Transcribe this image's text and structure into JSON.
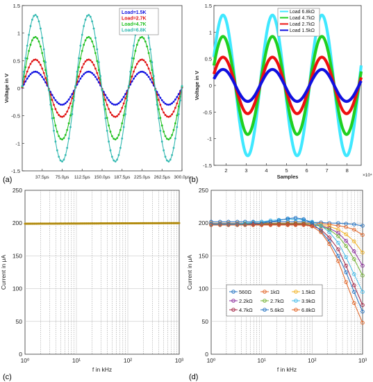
{
  "colors": {
    "load_1_5K": "#1010e0",
    "load_2_7K": "#e01010",
    "load_4_7K": "#20c020",
    "load_6_8K": "#30b8b0",
    "b_cyan": "#40e8ff",
    "c_line": "#c8a020",
    "d_560": "#1f6fc0",
    "d_1k": "#e06020",
    "d_1_5k": "#f0b020",
    "d_2_2k": "#8a2a9a",
    "d_2_7k": "#70b030",
    "d_3_9k": "#40b8e8",
    "d_4_7k": "#a02040",
    "d_5_6k": "#1f6fc0",
    "d_6_8k": "#e06020"
  },
  "panels": {
    "a": {
      "label": "(a)"
    },
    "b": {
      "label": "(b)"
    },
    "c": {
      "label": "(c)"
    },
    "d": {
      "label": "(d)"
    }
  },
  "chart_data": [
    {
      "panel": "a",
      "type": "line",
      "ylabel": "Voltage in V",
      "xlabel": "",
      "xlim": [
        0,
        300
      ],
      "ylim": [
        -1.5,
        1.5
      ],
      "x_ticks": [
        37.5,
        75,
        112.5,
        150,
        187.5,
        225,
        262.5,
        300
      ],
      "x_tick_labels": [
        "37.5μs",
        "75.0μs",
        "112.5μs",
        "150.0μs",
        "187.5μs",
        "225.0μs",
        "262.5μs",
        "300.0μs"
      ],
      "y_ticks": [
        -1.5,
        -1,
        -0.5,
        0,
        0.5,
        1,
        1.5
      ],
      "y_tick_labels": [
        "-1.5",
        "-1",
        "-0.5",
        "0",
        "0.5",
        "1",
        "1.5"
      ],
      "period": 100,
      "phase_offset": 0.03,
      "legend_position": "top-right",
      "series": [
        {
          "name": "Load=1.5K",
          "amplitude": 0.3,
          "color": "#1010e0"
        },
        {
          "name": "Load=2.7K",
          "amplitude": 0.52,
          "color": "#e01010"
        },
        {
          "name": "Load=4.7K",
          "amplitude": 0.93,
          "color": "#20c020"
        },
        {
          "name": "Load=6.8K",
          "amplitude": 1.33,
          "color": "#30b8b0"
        }
      ]
    },
    {
      "panel": "b",
      "type": "line",
      "ylabel": "Voltage in V",
      "xlabel": "Samples",
      "x_exponent": "×10⁴",
      "xlim": [
        1.4,
        8.7
      ],
      "ylim": [
        -1.5,
        1.5
      ],
      "x_ticks": [
        2,
        3,
        4,
        5,
        6,
        7,
        8
      ],
      "x_tick_labels": [
        "2",
        "3",
        "4",
        "5",
        "6",
        "7",
        "8"
      ],
      "y_ticks": [
        -1.5,
        -1,
        -0.5,
        0,
        0.5,
        1,
        1.5
      ],
      "y_tick_labels": [
        "-1.5",
        "-1",
        "-0.5",
        "0",
        "0.5",
        "1",
        "1.5"
      ],
      "period": 2.45,
      "peak_x": 1.85,
      "legend_position": "top-right",
      "series": [
        {
          "name": "Load 6.8kΩ",
          "amplitude": 1.32,
          "color": "#40e8ff"
        },
        {
          "name": "Load 4.7kΩ",
          "amplitude": 0.92,
          "color": "#20d020"
        },
        {
          "name": "Load 2.7kΩ",
          "amplitude": 0.53,
          "color": "#ee1010"
        },
        {
          "name": "Load 1.5kΩ",
          "amplitude": 0.3,
          "color": "#1010e0"
        }
      ]
    },
    {
      "panel": "c",
      "type": "line",
      "xscale": "log",
      "ylabel": "Current in μA",
      "xlabel": "f in kHz",
      "xlim": [
        1,
        1000
      ],
      "ylim": [
        0,
        250
      ],
      "x_tick_labels": [
        "10⁰",
        "10¹",
        "10²",
        "10³"
      ],
      "y_ticks": [
        0,
        50,
        100,
        150,
        200,
        250
      ],
      "y_tick_labels": [
        "0",
        "50",
        "100",
        "150",
        "200",
        "250"
      ],
      "grid": true,
      "series": [
        {
          "x": [
            1,
            1000
          ],
          "y": [
            199,
            200
          ],
          "color": "#c8a020"
        }
      ]
    },
    {
      "panel": "d",
      "type": "line",
      "xscale": "log",
      "ylabel": "Current in μA",
      "xlabel": "f in kHz",
      "xlim": [
        1,
        1000
      ],
      "ylim": [
        0,
        250
      ],
      "x_tick_labels": [
        "10⁰",
        "10¹",
        "10²",
        "10³"
      ],
      "y_ticks": [
        0,
        50,
        100,
        150,
        200,
        250
      ],
      "y_tick_labels": [
        "0",
        "50",
        "100",
        "150",
        "200",
        "250"
      ],
      "grid": true,
      "legend_position": "bottom-left",
      "x": [
        1,
        1.5,
        2.2,
        3.3,
        4.7,
        6.8,
        10,
        15,
        22,
        33,
        47,
        68,
        100,
        150,
        220,
        330,
        470,
        680,
        1000
      ],
      "series": [
        {
          "name": "560Ω",
          "color": "#1f6fc0",
          "y": [
            202,
            202,
            202,
            202,
            202,
            202,
            202,
            202,
            202,
            202,
            202,
            202,
            201,
            201,
            200,
            200,
            199,
            198,
            196
          ]
        },
        {
          "name": "1kΩ",
          "color": "#e06020",
          "y": [
            200,
            200,
            200,
            200,
            200,
            200,
            200,
            200,
            200,
            200,
            200,
            200,
            200,
            199,
            198,
            196,
            194,
            190,
            182
          ]
        },
        {
          "name": "1.5kΩ",
          "color": "#f0b020",
          "y": [
            199,
            199,
            199,
            199,
            199,
            199,
            199,
            199,
            199,
            199,
            199,
            199,
            198,
            197,
            195,
            190,
            183,
            172,
            155
          ]
        },
        {
          "name": "2.2kΩ",
          "color": "#8a2a9a",
          "y": [
            199,
            199,
            199,
            199,
            199,
            199,
            199,
            199,
            199,
            199,
            199,
            199,
            198,
            196,
            192,
            185,
            173,
            157,
            135
          ]
        },
        {
          "name": "2.7kΩ",
          "color": "#70b030",
          "y": [
            199,
            199,
            199,
            199,
            199,
            199,
            199,
            199,
            199,
            199,
            199,
            199,
            198,
            195,
            190,
            180,
            165,
            145,
            120
          ]
        },
        {
          "name": "3.9kΩ",
          "color": "#40b8e8",
          "y": [
            199,
            199,
            199,
            199,
            200,
            201,
            202,
            204,
            205,
            206,
            206,
            205,
            202,
            196,
            186,
            170,
            148,
            122,
            95
          ]
        },
        {
          "name": "4.7kΩ",
          "color": "#a02040",
          "y": [
            198,
            198,
            198,
            198,
            198,
            198,
            198,
            198,
            198,
            198,
            198,
            198,
            196,
            190,
            178,
            160,
            135,
            105,
            75
          ]
        },
        {
          "name": "5.6kΩ",
          "color": "#1f6fc0",
          "y": [
            198,
            198,
            198,
            198,
            198,
            199,
            200,
            202,
            204,
            207,
            208,
            206,
            200,
            188,
            172,
            150,
            125,
            95,
            65
          ]
        },
        {
          "name": "6.8kΩ",
          "color": "#e06020",
          "y": [
            197,
            197,
            197,
            197,
            197,
            197,
            197,
            197,
            197,
            197,
            197,
            197,
            195,
            186,
            168,
            142,
            110,
            78,
            48
          ]
        }
      ]
    }
  ]
}
